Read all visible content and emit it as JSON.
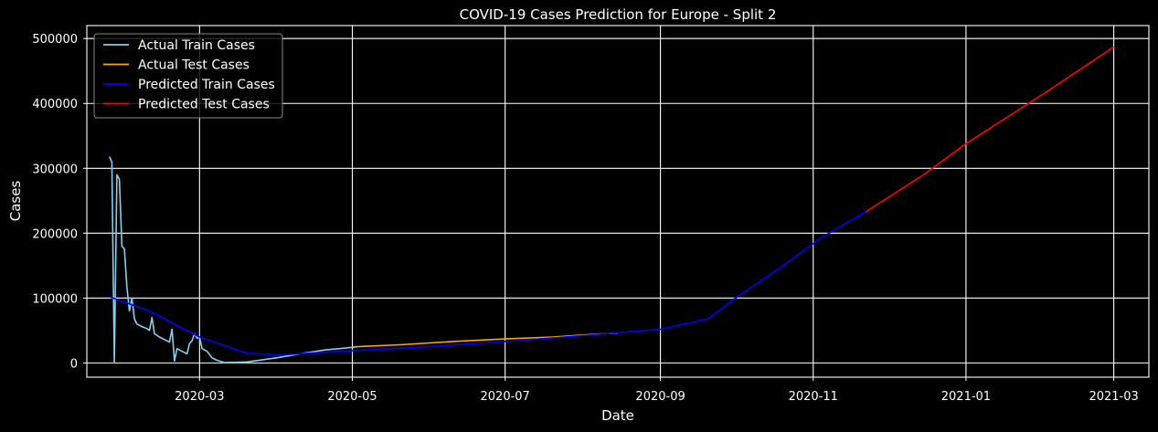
{
  "chart_data": {
    "type": "line",
    "title": "COVID-19 Cases Prediction for Europe - Split 2",
    "xlabel": "Date",
    "ylabel": "Cases",
    "xlim": [
      "2020-01-16",
      "2021-03-15"
    ],
    "ylim": [
      -22000,
      520000
    ],
    "grid": true,
    "legend_position": "top-left",
    "x_ticks": [
      "2020-03-01",
      "2020-05-01",
      "2020-07-01",
      "2020-09-01",
      "2020-11-01",
      "2021-01-01",
      "2021-03-01"
    ],
    "x_tick_labels": [
      "2020-03",
      "2020-05",
      "2020-07",
      "2020-09",
      "2020-11",
      "2021-01",
      "2021-03"
    ],
    "y_ticks": [
      0,
      100000,
      200000,
      300000,
      400000,
      500000
    ],
    "y_tick_labels": [
      "0",
      "100000",
      "200000",
      "300000",
      "400000",
      "500000"
    ],
    "series": [
      {
        "name": "Actual Train Cases",
        "color": "#87ceeb",
        "points": [
          [
            "2020-01-25",
            318000
          ],
          [
            "2020-01-26",
            310000
          ],
          [
            "2020-01-27",
            0
          ],
          [
            "2020-01-28",
            290000
          ],
          [
            "2020-01-29",
            283000
          ],
          [
            "2020-01-30",
            180000
          ],
          [
            "2020-01-31",
            176000
          ],
          [
            "2020-02-01",
            118000
          ],
          [
            "2020-02-02",
            80000
          ],
          [
            "2020-02-03",
            100000
          ],
          [
            "2020-02-04",
            68000
          ],
          [
            "2020-02-05",
            60000
          ],
          [
            "2020-02-07",
            56000
          ],
          [
            "2020-02-09",
            53000
          ],
          [
            "2020-02-10",
            50000
          ],
          [
            "2020-02-11",
            70000
          ],
          [
            "2020-02-12",
            45000
          ],
          [
            "2020-02-14",
            40000
          ],
          [
            "2020-02-16",
            36000
          ],
          [
            "2020-02-18",
            32000
          ],
          [
            "2020-02-19",
            52000
          ],
          [
            "2020-02-20",
            3000
          ],
          [
            "2020-02-21",
            22000
          ],
          [
            "2020-02-23",
            18000
          ],
          [
            "2020-02-25",
            14000
          ],
          [
            "2020-02-26",
            30000
          ],
          [
            "2020-02-27",
            34000
          ],
          [
            "2020-02-28",
            45000
          ],
          [
            "2020-02-29",
            38000
          ],
          [
            "2020-03-01",
            40000
          ],
          [
            "2020-03-02",
            22000
          ],
          [
            "2020-03-03",
            20000
          ],
          [
            "2020-03-04",
            18000
          ],
          [
            "2020-03-06",
            8000
          ],
          [
            "2020-03-08",
            4000
          ],
          [
            "2020-03-11",
            500
          ],
          [
            "2020-03-20",
            1500
          ],
          [
            "2020-04-01",
            8000
          ],
          [
            "2020-04-10",
            14000
          ],
          [
            "2020-04-20",
            20000
          ],
          [
            "2020-05-01",
            24000
          ],
          [
            "2020-05-03",
            25000
          ]
        ]
      },
      {
        "name": "Actual Test Cases",
        "color": "#ffa500",
        "points": [
          [
            "2020-05-03",
            25000
          ],
          [
            "2020-05-20",
            28000
          ],
          [
            "2020-06-10",
            33000
          ],
          [
            "2020-07-01",
            37000
          ],
          [
            "2020-07-20",
            40000
          ],
          [
            "2020-08-05",
            44000
          ],
          [
            "2020-08-15",
            46000
          ]
        ]
      },
      {
        "name": "Predicted Train Cases",
        "color": "#0000ff",
        "points": [
          [
            "2020-01-25",
            102000
          ],
          [
            "2020-02-10",
            80000
          ],
          [
            "2020-03-01",
            40000
          ],
          [
            "2020-03-20",
            15000
          ],
          [
            "2020-04-01",
            12000
          ],
          [
            "2020-05-01",
            19000
          ],
          [
            "2020-06-01",
            25000
          ],
          [
            "2020-07-01",
            33000
          ],
          [
            "2020-08-01",
            42000
          ],
          [
            "2020-09-01",
            52000
          ],
          [
            "2020-09-20",
            68000
          ],
          [
            "2020-10-01",
            100000
          ],
          [
            "2020-10-20",
            150000
          ],
          [
            "2020-11-05",
            195000
          ],
          [
            "2020-11-22",
            233000
          ]
        ]
      },
      {
        "name": "Predicted Test Cases",
        "color": "#ff0000",
        "points": [
          [
            "2020-11-22",
            233000
          ],
          [
            "2020-12-15",
            290000
          ],
          [
            "2021-01-01",
            338000
          ],
          [
            "2021-02-01",
            415000
          ],
          [
            "2021-03-01",
            487000
          ]
        ]
      }
    ]
  }
}
